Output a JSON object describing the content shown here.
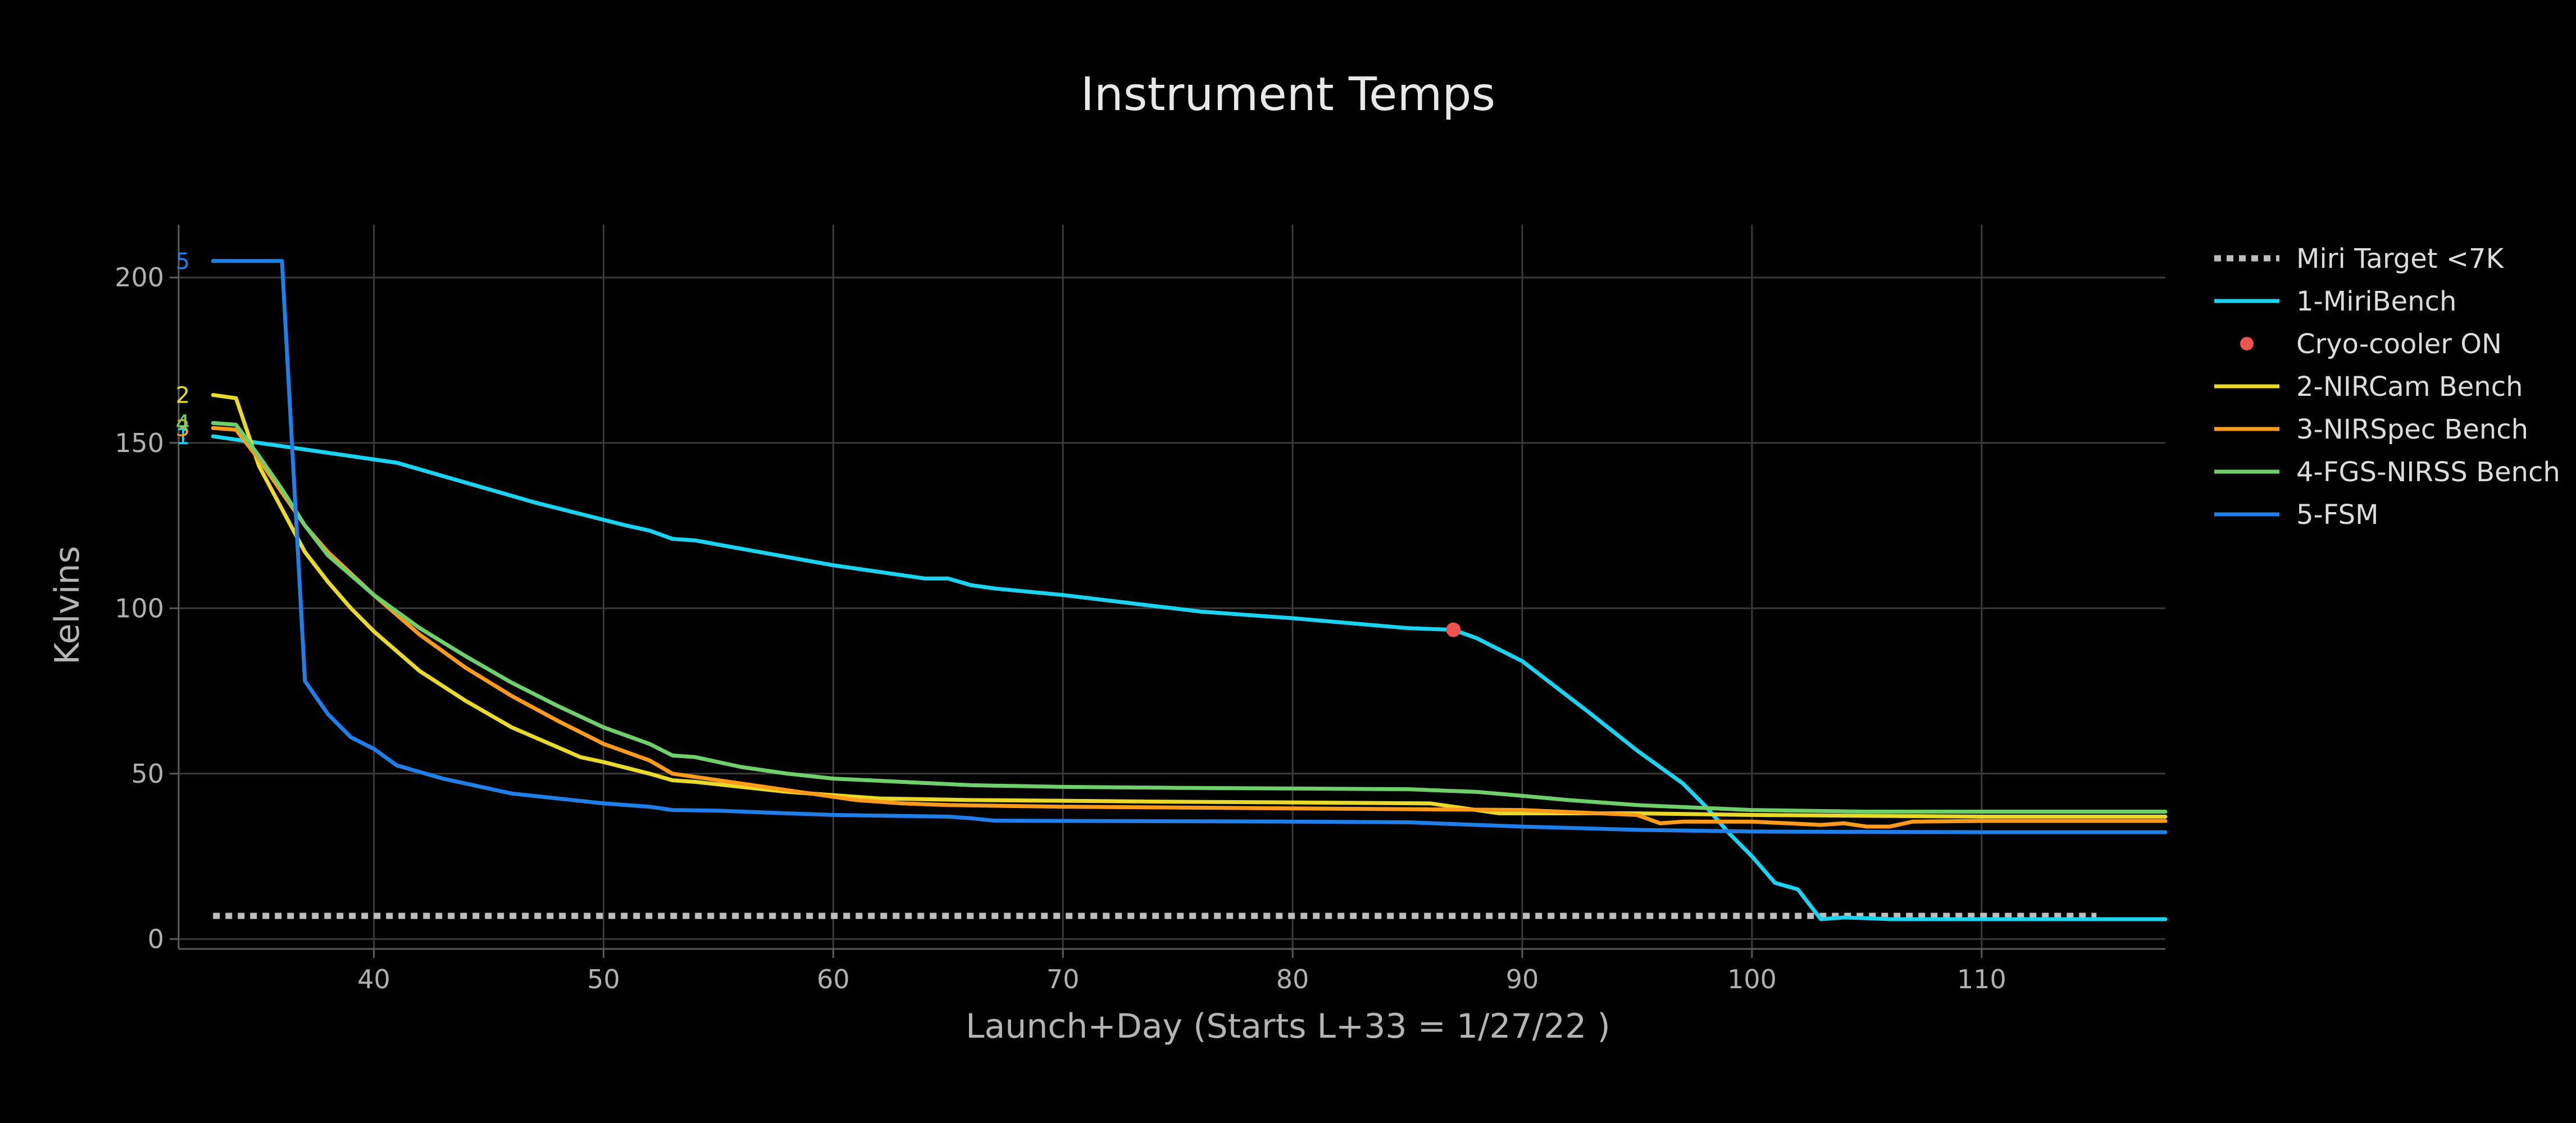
{
  "chart_data": {
    "type": "line",
    "title": "Instrument Temps",
    "xlabel": "Launch+Day (Starts L+33 = 1/27/22 )",
    "ylabel": "Kelvins",
    "xlim": [
      31.5,
      118
    ],
    "ylim": [
      -3,
      216
    ],
    "x_ticks": [
      40,
      50,
      60,
      70,
      80,
      90,
      100,
      110
    ],
    "y_ticks": [
      0,
      50,
      100,
      150,
      200
    ],
    "grid": true,
    "legend_placement": "right",
    "series": [
      {
        "name": "Miri Target <7K",
        "type": "line",
        "dash": "dotted",
        "color": "#bdbdbd",
        "points": [
          [
            33,
            7
          ],
          [
            115,
            7
          ]
        ]
      },
      {
        "name": "1-MiriBench",
        "type": "line",
        "color": "#1ad3f0",
        "label": "1",
        "points": [
          [
            33,
            152
          ],
          [
            35,
            150
          ],
          [
            37,
            148
          ],
          [
            39,
            146
          ],
          [
            41,
            144
          ],
          [
            43,
            140
          ],
          [
            45,
            136
          ],
          [
            47,
            132
          ],
          [
            49,
            128.5
          ],
          [
            51,
            125
          ],
          [
            52,
            123.5
          ],
          [
            53,
            121
          ],
          [
            54,
            120.5
          ],
          [
            56,
            118
          ],
          [
            58,
            115.5
          ],
          [
            60,
            113
          ],
          [
            62,
            111
          ],
          [
            64,
            109
          ],
          [
            65,
            109
          ],
          [
            66,
            107
          ],
          [
            67,
            106
          ],
          [
            70,
            104
          ],
          [
            73,
            101.5
          ],
          [
            76,
            99
          ],
          [
            80,
            97
          ],
          [
            85,
            94
          ],
          [
            87,
            93.5
          ],
          [
            88,
            91
          ],
          [
            90,
            84
          ],
          [
            93,
            68
          ],
          [
            95,
            57
          ],
          [
            97,
            47
          ],
          [
            98,
            40
          ],
          [
            99,
            32
          ],
          [
            100,
            25
          ],
          [
            101,
            17
          ],
          [
            102,
            15
          ],
          [
            103,
            6
          ],
          [
            104,
            6.5
          ],
          [
            105,
            6.3
          ],
          [
            106,
            6
          ],
          [
            110,
            6
          ],
          [
            118,
            6
          ]
        ]
      },
      {
        "name": "Cryo-cooler ON",
        "type": "scatter",
        "color": "#ef5350",
        "points": [
          [
            87,
            93.5
          ]
        ]
      },
      {
        "name": "2-NIRCam Bench",
        "type": "line",
        "color": "#e8d92a",
        "label": "2",
        "points": [
          [
            33,
            164.5
          ],
          [
            34,
            163.5
          ],
          [
            35,
            143
          ],
          [
            36,
            130
          ],
          [
            37,
            117
          ],
          [
            38,
            108
          ],
          [
            39,
            100
          ],
          [
            40,
            93
          ],
          [
            42,
            81
          ],
          [
            44,
            72
          ],
          [
            46,
            64
          ],
          [
            48,
            58
          ],
          [
            49,
            55
          ],
          [
            50,
            53.5
          ],
          [
            52,
            50
          ],
          [
            53,
            48
          ],
          [
            54,
            47.5
          ],
          [
            56,
            46
          ],
          [
            58,
            44.5
          ],
          [
            60,
            43.5
          ],
          [
            62,
            42.5
          ],
          [
            66,
            42
          ],
          [
            70,
            41.8
          ],
          [
            75,
            41.5
          ],
          [
            80,
            41.3
          ],
          [
            86,
            41
          ],
          [
            88,
            39
          ],
          [
            89,
            38
          ],
          [
            90,
            38
          ],
          [
            95,
            38
          ],
          [
            100,
            37.5
          ],
          [
            110,
            37
          ],
          [
            118,
            37
          ]
        ]
      },
      {
        "name": "3-NIRSpec Bench",
        "type": "line",
        "color": "#ff9a1a",
        "label": "3",
        "points": [
          [
            33,
            154.5
          ],
          [
            34,
            154
          ],
          [
            35,
            145
          ],
          [
            36,
            135
          ],
          [
            37,
            125
          ],
          [
            38,
            117
          ],
          [
            40,
            104
          ],
          [
            42,
            92
          ],
          [
            44,
            82
          ],
          [
            46,
            73.5
          ],
          [
            48,
            66
          ],
          [
            50,
            59
          ],
          [
            52,
            54
          ],
          [
            53,
            50
          ],
          [
            55,
            48
          ],
          [
            57,
            46
          ],
          [
            59,
            44
          ],
          [
            61,
            42
          ],
          [
            63,
            41
          ],
          [
            65,
            40.5
          ],
          [
            70,
            40
          ],
          [
            80,
            39.5
          ],
          [
            90,
            39
          ],
          [
            95,
            37.5
          ],
          [
            96,
            35
          ],
          [
            97,
            35.5
          ],
          [
            100,
            35.5
          ],
          [
            103,
            34.5
          ],
          [
            104,
            35
          ],
          [
            105,
            34
          ],
          [
            106,
            34
          ],
          [
            107,
            35.5
          ],
          [
            110,
            35.7
          ],
          [
            118,
            35.7
          ]
        ]
      },
      {
        "name": "4-FGS-NIRSS Bench",
        "type": "line",
        "color": "#6fcf6a",
        "label": "4",
        "points": [
          [
            33,
            156
          ],
          [
            34,
            155.5
          ],
          [
            35,
            146
          ],
          [
            36,
            136
          ],
          [
            37,
            125
          ],
          [
            38,
            116
          ],
          [
            40,
            104
          ],
          [
            42,
            94
          ],
          [
            44,
            85.5
          ],
          [
            46,
            77.5
          ],
          [
            48,
            70.5
          ],
          [
            50,
            64
          ],
          [
            52,
            59
          ],
          [
            53,
            55.5
          ],
          [
            54,
            55
          ],
          [
            56,
            52
          ],
          [
            58,
            50
          ],
          [
            60,
            48.5
          ],
          [
            63,
            47.5
          ],
          [
            66,
            46.5
          ],
          [
            70,
            46
          ],
          [
            75,
            45.7
          ],
          [
            80,
            45.5
          ],
          [
            85,
            45.3
          ],
          [
            88,
            44.5
          ],
          [
            90,
            43.3
          ],
          [
            92,
            42
          ],
          [
            95,
            40.5
          ],
          [
            100,
            39
          ],
          [
            105,
            38.5
          ],
          [
            110,
            38.5
          ],
          [
            118,
            38.5
          ]
        ]
      },
      {
        "name": "5-FSM",
        "type": "line",
        "color": "#1f7ee8",
        "label": "5",
        "points": [
          [
            33,
            205
          ],
          [
            36,
            205
          ],
          [
            37,
            78
          ],
          [
            38,
            68
          ],
          [
            39,
            61
          ],
          [
            40,
            57.5
          ],
          [
            41,
            52.5
          ],
          [
            43,
            48.5
          ],
          [
            46,
            44
          ],
          [
            48,
            42.5
          ],
          [
            50,
            41
          ],
          [
            52,
            40
          ],
          [
            53,
            39
          ],
          [
            55,
            38.8
          ],
          [
            58,
            38
          ],
          [
            60,
            37.5
          ],
          [
            65,
            37
          ],
          [
            66,
            36.5
          ],
          [
            67,
            35.8
          ],
          [
            70,
            35.7
          ],
          [
            80,
            35.5
          ],
          [
            85,
            35.3
          ],
          [
            88,
            34.5
          ],
          [
            90,
            34
          ],
          [
            95,
            33
          ],
          [
            100,
            32.5
          ],
          [
            110,
            32.3
          ],
          [
            118,
            32.3
          ]
        ]
      }
    ]
  }
}
